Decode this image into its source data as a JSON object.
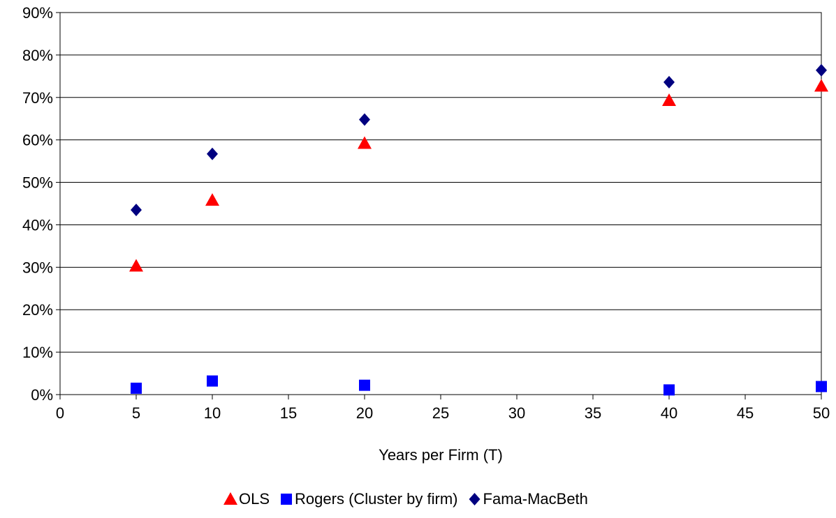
{
  "chart_data": {
    "type": "scatter",
    "title": "",
    "xlabel": "Years per Firm (T)",
    "ylabel": "",
    "xlim": [
      0,
      50
    ],
    "ylim": [
      0,
      90
    ],
    "x_ticks": [
      "0",
      "5",
      "10",
      "15",
      "20",
      "25",
      "30",
      "35",
      "40",
      "45",
      "50"
    ],
    "y_ticks": [
      "0%",
      "10%",
      "20%",
      "30%",
      "40%",
      "50%",
      "60%",
      "70%",
      "80%",
      "90%"
    ],
    "y_unit": "%",
    "grid": "horizontal",
    "legend_position": "bottom",
    "series": [
      {
        "name": "OLS",
        "marker": "triangle",
        "color": "#ff0000",
        "points": [
          {
            "x": 5,
            "y": 30.3
          },
          {
            "x": 10,
            "y": 45.8
          },
          {
            "x": 20,
            "y": 59.2
          },
          {
            "x": 40,
            "y": 69.3
          },
          {
            "x": 50,
            "y": 72.7
          }
        ]
      },
      {
        "name": "Rogers (Cluster by firm)",
        "marker": "square",
        "color": "#0000ff",
        "points": [
          {
            "x": 5,
            "y": 1.5
          },
          {
            "x": 10,
            "y": 3.2
          },
          {
            "x": 20,
            "y": 2.2
          },
          {
            "x": 40,
            "y": 1.1
          },
          {
            "x": 50,
            "y": 1.9
          }
        ]
      },
      {
        "name": "Fama-MacBeth",
        "marker": "diamond",
        "color": "#000080",
        "points": [
          {
            "x": 5,
            "y": 43.5
          },
          {
            "x": 10,
            "y": 56.7
          },
          {
            "x": 20,
            "y": 64.8
          },
          {
            "x": 40,
            "y": 73.6
          },
          {
            "x": 50,
            "y": 76.4
          }
        ]
      }
    ]
  }
}
